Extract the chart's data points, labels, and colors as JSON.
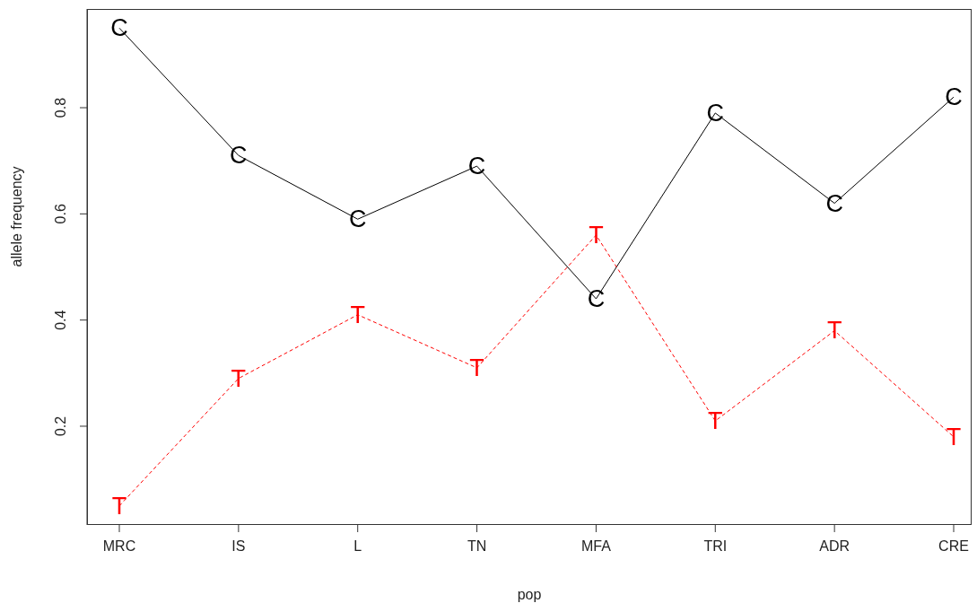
{
  "chart_data": {
    "type": "line",
    "xlabel": "pop",
    "ylabel": "allele frequency",
    "categories": [
      "MRC",
      "IS",
      "L",
      "TN",
      "MFA",
      "TRI",
      "ADR",
      "CRE"
    ],
    "series": [
      {
        "name": "C",
        "color": "#000000",
        "line_style": "solid",
        "values": [
          0.95,
          0.71,
          0.59,
          0.69,
          0.44,
          0.79,
          0.62,
          0.82
        ]
      },
      {
        "name": "T",
        "color": "#ff0000",
        "line_style": "dashed",
        "values": [
          0.05,
          0.29,
          0.41,
          0.31,
          0.56,
          0.21,
          0.38,
          0.18
        ]
      }
    ],
    "ylim": [
      0.014,
      0.986
    ],
    "yticks": [
      0.2,
      0.4,
      0.6,
      0.8
    ],
    "grid": false,
    "legend": false
  }
}
